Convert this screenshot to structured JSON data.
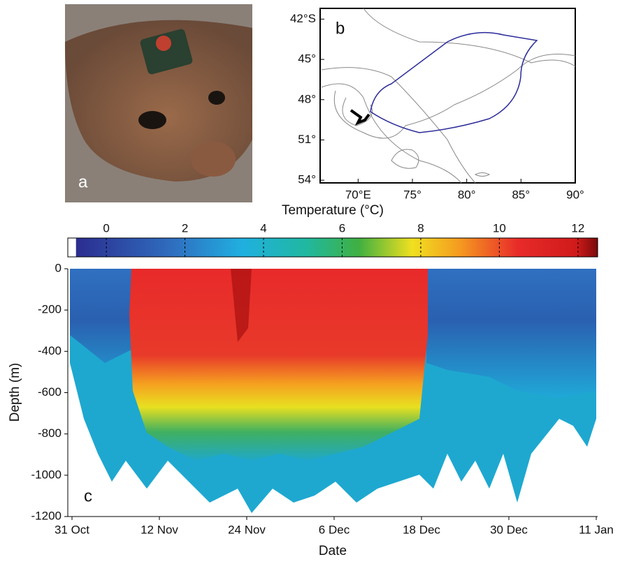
{
  "photo": {
    "label": "a"
  },
  "map": {
    "label": "b",
    "xlim": [
      66.5,
      90
    ],
    "ylim": [
      -54.2,
      -41.2
    ],
    "xticks": [
      {
        "value": 70,
        "label": "70°E"
      },
      {
        "value": 75,
        "label": "75°"
      },
      {
        "value": 80,
        "label": "80°"
      },
      {
        "value": 85,
        "label": "85°"
      },
      {
        "value": 90,
        "label": "90°"
      }
    ],
    "yticks": [
      {
        "value": -42,
        "label": "42°S"
      },
      {
        "value": -45,
        "label": "45°"
      },
      {
        "value": -48,
        "label": "48°"
      },
      {
        "value": -51,
        "label": "51°"
      },
      {
        "value": -54,
        "label": "54°"
      }
    ]
  },
  "colorbar": {
    "title": "Temperature (°C)",
    "lim": [
      -0.98,
      12.5
    ],
    "ticks": [
      0,
      2,
      4,
      6,
      8,
      10,
      12
    ]
  },
  "chart_data": {
    "type": "section",
    "label": "c",
    "xlabel": "Date",
    "ylabel": "Depth (m)",
    "categories": [
      "31 Oct",
      "12 Nov",
      "24 Nov",
      "6 Dec",
      "18 Dec",
      "30 Dec",
      "11 Jan"
    ],
    "ylim": [
      -1200,
      0
    ],
    "yticks": [
      0,
      -200,
      -400,
      -600,
      -800,
      -1000,
      -1200
    ]
  }
}
